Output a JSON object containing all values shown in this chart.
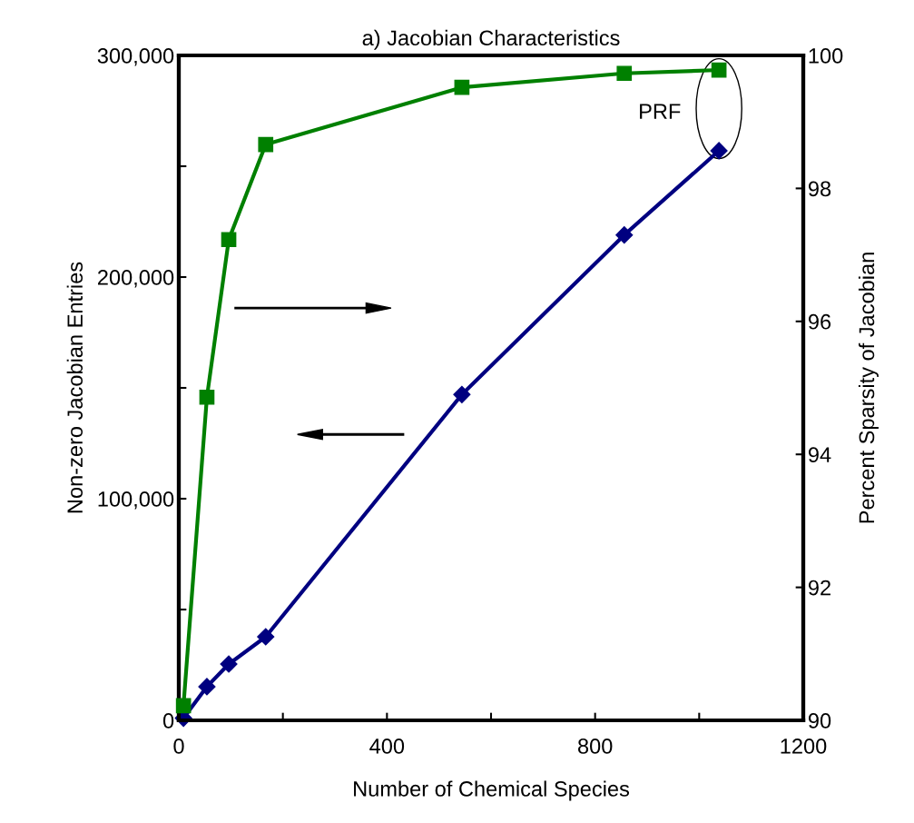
{
  "chart_data": {
    "type": "line",
    "title": "a) Jacobian Characteristics",
    "xlabel": "Number of Chemical Species",
    "ylabel": "Non-zero Jacobian Entries",
    "y2label": "Percent Sparsity of Jacobian",
    "x": [
      9,
      54,
      96,
      167,
      544,
      856,
      1038
    ],
    "series": [
      {
        "color": "#000080",
        "marker": "diamond",
        "values": [
          1000,
          15200,
          25400,
          37700,
          147000,
          219000,
          257000
        ]
      },
      {
        "color": "#008000",
        "marker": "square",
        "axis": "y2",
        "values": [
          90.22,
          94.86,
          97.23,
          98.66,
          99.52,
          99.73,
          99.78
        ]
      }
    ],
    "xlim": [
      0,
      1200
    ],
    "xticks": [
      0,
      {
        "value": 200,
        "label": null
      },
      400,
      {
        "value": 600,
        "label": null
      },
      800,
      {
        "value": 1000,
        "label": null
      },
      1200
    ],
    "ylim": [
      0,
      300000
    ],
    "yticks": [
      {
        "value": 0,
        "label": "0"
      },
      {
        "value": 50000,
        "label": null
      },
      {
        "value": 100000,
        "label": "100,000"
      },
      {
        "value": 150000,
        "label": null
      },
      {
        "value": 200000,
        "label": "200,000"
      },
      {
        "value": 250000,
        "label": null
      },
      {
        "value": 300000,
        "label": "300,000"
      }
    ],
    "y2lim": [
      90,
      100
    ],
    "y2ticks": [
      90,
      92,
      94,
      96,
      98,
      100
    ],
    "annotations": [
      "PRF"
    ],
    "grid": false,
    "legend": false,
    "line_style": "solid"
  }
}
